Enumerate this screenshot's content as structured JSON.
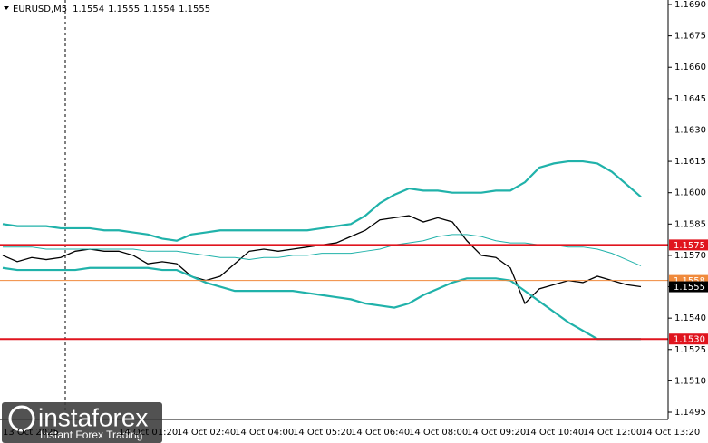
{
  "chart_data": {
    "type": "line",
    "symbol": "EURUSD,M5",
    "ohlc": [
      1.1554,
      1.1555,
      1.1554,
      1.1555
    ],
    "categories": [
      "13 Oct 2025",
      null,
      null,
      null,
      null,
      null,
      null,
      null,
      "14 Oct 01:20",
      null,
      null,
      null,
      "14 Oct 02:40",
      null,
      null,
      null,
      "14 Oct 04:00",
      null,
      null,
      null,
      "14 Oct 05:20",
      null,
      null,
      null,
      "14 Oct 06:40",
      null,
      null,
      null,
      "14 Oct 08:00",
      null,
      null,
      null,
      "14 Oct 09:20",
      null,
      null,
      null,
      "14 Oct 10:40",
      null,
      null,
      null,
      "14 Oct 12:00",
      null,
      null,
      null,
      "14 Oct 13:20"
    ],
    "series": [
      {
        "name": "EURUSD",
        "color": "#000000",
        "width": 1.3,
        "values": [
          1.157,
          1.1567,
          1.1569,
          1.1568,
          1.1569,
          1.1572,
          1.1573,
          1.1572,
          1.1572,
          1.157,
          1.1566,
          1.1567,
          1.1566,
          1.156,
          1.1558,
          1.156,
          1.1566,
          1.1572,
          1.1573,
          1.1572,
          1.1573,
          1.1574,
          1.1575,
          1.1576,
          1.1579,
          1.1582,
          1.1587,
          1.1588,
          1.1589,
          1.1586,
          1.1588,
          1.1586,
          1.1577,
          1.157,
          1.1569,
          1.1564,
          1.1547,
          1.1554,
          1.1556,
          1.1558,
          1.1557,
          1.156,
          1.1558,
          1.1556,
          1.1555
        ]
      },
      {
        "name": "Upper band",
        "color": "#20b2aa",
        "width": 2.2,
        "values": [
          1.1585,
          1.1584,
          1.1584,
          1.1584,
          1.1583,
          1.1583,
          1.1583,
          1.1582,
          1.1582,
          1.1581,
          1.158,
          1.1578,
          1.1577,
          1.158,
          1.1581,
          1.1582,
          1.1582,
          1.1582,
          1.1582,
          1.1582,
          1.1582,
          1.1582,
          1.1583,
          1.1584,
          1.1585,
          1.1589,
          1.1595,
          1.1599,
          1.1602,
          1.1601,
          1.1601,
          1.16,
          1.16,
          1.16,
          1.1601,
          1.1601,
          1.1605,
          1.1612,
          1.1614,
          1.1615,
          1.1615,
          1.1614,
          1.161,
          1.1604,
          1.1598
        ]
      },
      {
        "name": "Middle band",
        "color": "#20b2aa",
        "width": 1,
        "values": [
          1.1574,
          1.1574,
          1.1574,
          1.1573,
          1.1573,
          1.1573,
          1.1573,
          1.1573,
          1.1573,
          1.1573,
          1.1572,
          1.1572,
          1.1572,
          1.1571,
          1.157,
          1.1569,
          1.1569,
          1.1568,
          1.1569,
          1.1569,
          1.157,
          1.157,
          1.1571,
          1.1571,
          1.1571,
          1.1572,
          1.1573,
          1.1575,
          1.1576,
          1.1577,
          1.1579,
          1.158,
          1.158,
          1.1579,
          1.1577,
          1.1576,
          1.1576,
          1.1575,
          1.1575,
          1.1574,
          1.1574,
          1.1573,
          1.1571,
          1.1568,
          1.1565
        ]
      },
      {
        "name": "Lower band",
        "color": "#20b2aa",
        "width": 2.2,
        "values": [
          1.1564,
          1.1563,
          1.1563,
          1.1563,
          1.1563,
          1.1563,
          1.1564,
          1.1564,
          1.1564,
          1.1564,
          1.1564,
          1.1563,
          1.1563,
          1.156,
          1.1557,
          1.1555,
          1.1553,
          1.1553,
          1.1553,
          1.1553,
          1.1553,
          1.1552,
          1.1551,
          1.155,
          1.1549,
          1.1547,
          1.1546,
          1.1545,
          1.1547,
          1.1551,
          1.1554,
          1.1557,
          1.1559,
          1.1559,
          1.1559,
          1.1558,
          1.1553,
          1.1548,
          1.1543,
          1.1538,
          1.1534,
          1.153,
          1.153,
          1.153,
          1.153
        ]
      }
    ],
    "ylim": [
      1.1495,
      1.169
    ],
    "yticks": [
      {
        "value": 1.169,
        "label": "1.1690"
      },
      1.1675,
      {
        "value": 1.166,
        "label": "1.1660"
      },
      1.1645,
      {
        "value": 1.163,
        "label": "1.1630"
      },
      1.1615,
      {
        "value": 1.16,
        "label": "1.1600"
      },
      1.1585,
      {
        "value": 1.157,
        "label": "1.1570"
      },
      1.1555,
      {
        "value": 1.154,
        "label": "1.1540"
      },
      1.1525,
      {
        "value": 1.151,
        "label": "1.1510"
      },
      1.1495
    ],
    "grid": false,
    "levels": [
      {
        "value": 1.1575,
        "label": "1.1575",
        "color": "#e0141e",
        "width": 2
      },
      {
        "value": 1.153,
        "label": "1.1530",
        "color": "#e0141e",
        "width": 2
      },
      {
        "value": 1.1558,
        "label": "1.1558",
        "color": "#f08a3c",
        "width": 1
      },
      {
        "value": 1.1555,
        "label": "1.1555",
        "color": "#000000",
        "width": 0
      }
    ],
    "watermark": {
      "brand": "instaforex",
      "tagline": "Instant Forex Trading"
    }
  }
}
